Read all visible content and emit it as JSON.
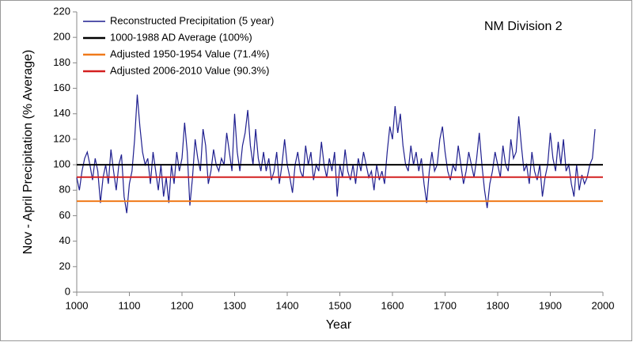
{
  "chart_data": {
    "type": "line",
    "annotation": "NM Division 2",
    "xlabel": "Year",
    "ylabel": "Nov - April Precipitation (% Average)",
    "xlim": [
      1000,
      2000
    ],
    "xticks": [
      1000,
      1100,
      1200,
      1300,
      1400,
      1500,
      1600,
      1700,
      1800,
      1900,
      2000
    ],
    "ylim": [
      0,
      220
    ],
    "yticks": [
      0,
      20,
      40,
      60,
      80,
      100,
      120,
      140,
      160,
      180,
      200,
      220
    ],
    "grid": false,
    "legend": "upper left",
    "series": [
      {
        "name": "Reconstructed Precipitation (5 year)",
        "color": "#1f1f8f",
        "x": [
          1000,
          1005,
          1010,
          1015,
          1020,
          1025,
          1030,
          1035,
          1040,
          1045,
          1050,
          1055,
          1060,
          1065,
          1070,
          1075,
          1080,
          1085,
          1090,
          1095,
          1100,
          1105,
          1110,
          1115,
          1120,
          1125,
          1130,
          1135,
          1140,
          1145,
          1150,
          1155,
          1160,
          1165,
          1170,
          1175,
          1180,
          1185,
          1190,
          1195,
          1200,
          1205,
          1210,
          1215,
          1220,
          1225,
          1230,
          1235,
          1240,
          1245,
          1250,
          1255,
          1260,
          1265,
          1270,
          1275,
          1280,
          1285,
          1290,
          1295,
          1300,
          1305,
          1310,
          1315,
          1320,
          1325,
          1330,
          1335,
          1340,
          1345,
          1350,
          1355,
          1360,
          1365,
          1370,
          1375,
          1380,
          1385,
          1390,
          1395,
          1400,
          1405,
          1410,
          1415,
          1420,
          1425,
          1430,
          1435,
          1440,
          1445,
          1450,
          1455,
          1460,
          1465,
          1470,
          1475,
          1480,
          1485,
          1490,
          1495,
          1500,
          1505,
          1510,
          1515,
          1520,
          1525,
          1530,
          1535,
          1540,
          1545,
          1550,
          1555,
          1560,
          1565,
          1570,
          1575,
          1580,
          1585,
          1590,
          1595,
          1600,
          1605,
          1610,
          1615,
          1620,
          1625,
          1630,
          1635,
          1640,
          1645,
          1650,
          1655,
          1660,
          1665,
          1670,
          1675,
          1680,
          1685,
          1690,
          1695,
          1700,
          1705,
          1710,
          1715,
          1720,
          1725,
          1730,
          1735,
          1740,
          1745,
          1750,
          1755,
          1760,
          1765,
          1770,
          1775,
          1780,
          1785,
          1790,
          1795,
          1800,
          1805,
          1810,
          1815,
          1820,
          1825,
          1830,
          1835,
          1840,
          1845,
          1850,
          1855,
          1860,
          1865,
          1870,
          1875,
          1880,
          1885,
          1890,
          1895,
          1900,
          1905,
          1910,
          1915,
          1920,
          1925,
          1930,
          1935,
          1940,
          1945,
          1950,
          1955,
          1960,
          1965,
          1970,
          1975,
          1980,
          1985
        ],
        "values": [
          90,
          80,
          95,
          105,
          110,
          100,
          88,
          105,
          95,
          70,
          90,
          100,
          85,
          112,
          95,
          80,
          100,
          108,
          75,
          62,
          85,
          95,
          120,
          155,
          130,
          110,
          100,
          105,
          85,
          110,
          95,
          80,
          100,
          75,
          90,
          70,
          100,
          85,
          110,
          95,
          105,
          133,
          110,
          68,
          90,
          120,
          105,
          95,
          128,
          115,
          85,
          95,
          112,
          100,
          95,
          105,
          100,
          125,
          110,
          95,
          140,
          110,
          95,
          115,
          125,
          143,
          115,
          100,
          128,
          105,
          95,
          110,
          95,
          105,
          88,
          95,
          110,
          85,
          100,
          120,
          100,
          90,
          78,
          100,
          110,
          95,
          90,
          115,
          100,
          110,
          88,
          100,
          95,
          118,
          100,
          90,
          105,
          95,
          110,
          75,
          100,
          90,
          112,
          95,
          88,
          100,
          85,
          105,
          95,
          110,
          100,
          90,
          95,
          80,
          100,
          88,
          95,
          85,
          110,
          130,
          120,
          146,
          125,
          140,
          115,
          100,
          95,
          115,
          100,
          110,
          95,
          105,
          85,
          70,
          95,
          110,
          95,
          100,
          120,
          130,
          110,
          95,
          88,
          100,
          95,
          115,
          100,
          85,
          95,
          110,
          100,
          90,
          105,
          125,
          100,
          80,
          66,
          85,
          95,
          110,
          100,
          90,
          115,
          100,
          95,
          120,
          105,
          110,
          138,
          115,
          95,
          100,
          85,
          110,
          95,
          88,
          100,
          75,
          90,
          100,
          125,
          105,
          95,
          118,
          100,
          120,
          95,
          100,
          85,
          75,
          100,
          80,
          92,
          85,
          90,
          100,
          105,
          128
        ]
      },
      {
        "name": "1000-1988 AD Average (100%)",
        "color": "#000000",
        "x": [
          1000,
          2000
        ],
        "values": [
          100,
          100
        ]
      },
      {
        "name": "Adjusted 1950-1954 Value (71.4%)",
        "color": "#f07a1a",
        "x": [
          1000,
          2000
        ],
        "values": [
          71.4,
          71.4
        ]
      },
      {
        "name": "Adjusted 2006-2010 Value (90.3%)",
        "color": "#d42020",
        "x": [
          1000,
          2000
        ],
        "values": [
          90.3,
          90.3
        ]
      }
    ]
  }
}
